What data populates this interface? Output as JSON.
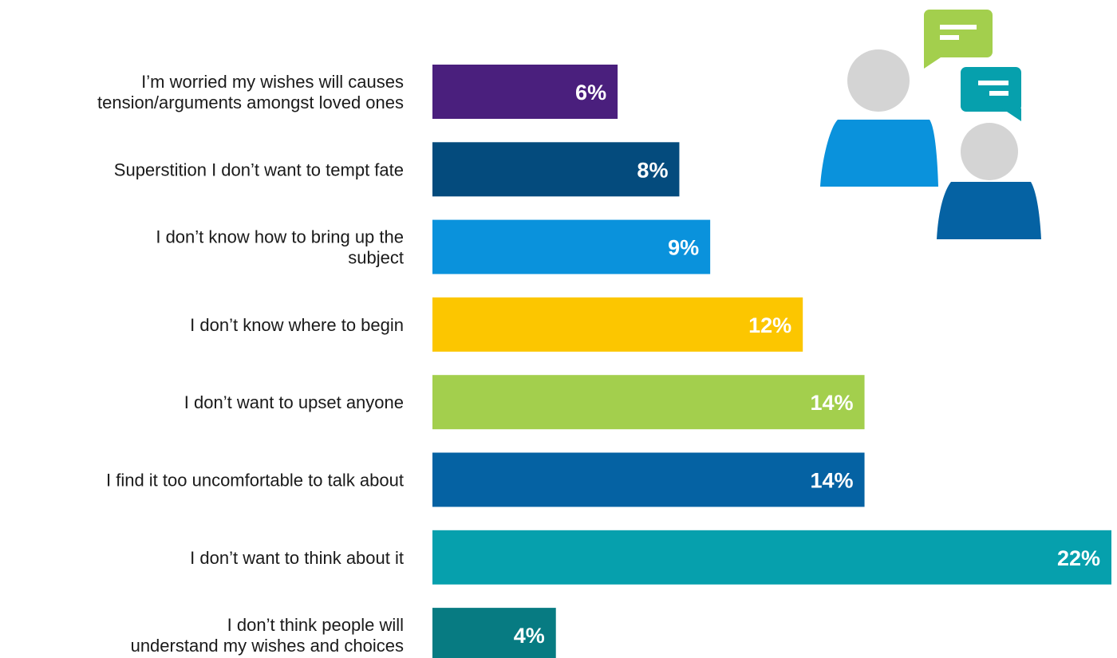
{
  "chart_data": {
    "type": "bar",
    "orientation": "horizontal",
    "categories": [
      [
        "I’m worried my wishes will causes",
        "tension/arguments amongst loved ones"
      ],
      [
        "Superstition I don’t want to tempt fate"
      ],
      [
        "I don’t know how to bring up the",
        "subject"
      ],
      [
        "I don’t know where to begin"
      ],
      [
        "I don’t want to upset anyone"
      ],
      [
        "I find it too uncomfortable to talk about"
      ],
      [
        "I don’t want to think about it"
      ],
      [
        "I don’t think people will",
        "understand my wishes and choices"
      ]
    ],
    "values": [
      6,
      8,
      9,
      12,
      14,
      14,
      22,
      4
    ],
    "value_labels": [
      "6%",
      "8%",
      "9%",
      "12%",
      "14%",
      "14%",
      "22%",
      "4%"
    ],
    "colors": [
      "#4a1f7d",
      "#044b7d",
      "#0a92dc",
      "#fcc600",
      "#a3cf4d",
      "#0562a3",
      "#06a0ad",
      "#077b82"
    ],
    "xlim": [
      0,
      22
    ],
    "grid": false,
    "legend": "none"
  },
  "illustration": {
    "icons": [
      "person-icon",
      "person-icon",
      "speech-bubble-icon",
      "speech-bubble-icon"
    ],
    "colors": {
      "head": "#d4d4d4",
      "person_left_body": "#0a92dc",
      "person_right_body": "#0562a3",
      "bubble_green": "#a3cf4d",
      "bubble_teal": "#06a0ad"
    }
  }
}
